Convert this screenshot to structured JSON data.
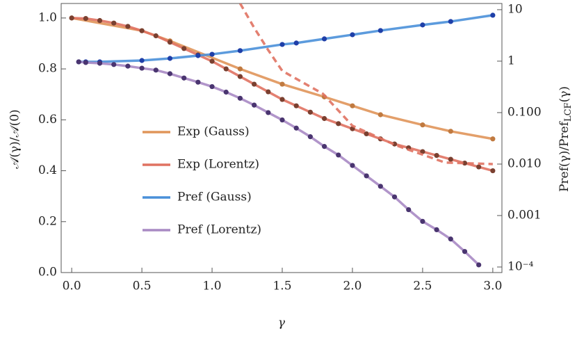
{
  "chart_data": {
    "type": "line",
    "xlabel": "γ",
    "ylabel": "𝒜(γ)/𝒜(0)",
    "y2label": [
      "Pref(γ)/Pref",
      "LCF",
      "(γ)"
    ],
    "xlim": [
      -0.075,
      3.065
    ],
    "ylim": [
      0,
      1.057
    ],
    "y2lim": [
      7.8e-05,
      13.2
    ],
    "y2log": true,
    "xticks": [
      {
        "value": 0,
        "label": "0.0"
      },
      0.5,
      {
        "value": 1,
        "label": "1.0"
      },
      1.5,
      {
        "value": 2,
        "label": "2.0"
      },
      2.5,
      {
        "value": 3,
        "label": "3.0"
      }
    ],
    "yticks": [
      {
        "value": 0,
        "label": "0.0"
      },
      0.2,
      0.4,
      0.6,
      0.8,
      {
        "value": 1,
        "label": "1.0"
      }
    ],
    "y2ticks": [
      10,
      1,
      {
        "value": 0.1,
        "label": "0.100"
      },
      {
        "value": 0.01,
        "label": "0.010"
      },
      0.001,
      {
        "value": 0.0001,
        "label": "10⁻⁴"
      }
    ],
    "legend": "left",
    "series": [
      {
        "name": "Exp (Gauss)",
        "color": "#e0955a",
        "marker_color": "#c07a40",
        "x": [
          0,
          0.5,
          0.7,
          1.2,
          1.5,
          1.8,
          2.0,
          2.2,
          2.5,
          2.7,
          3.0
        ],
        "values": [
          1.0,
          0.95,
          0.91,
          0.8,
          0.74,
          0.69,
          0.655,
          0.62,
          0.58,
          0.555,
          0.525
        ]
      },
      {
        "name": "Exp (Lorentz)",
        "color": "#e07262",
        "marker_color": "#7a4030",
        "x": [
          0,
          0.1,
          0.2,
          0.3,
          0.4,
          0.5,
          0.6,
          0.7,
          0.8,
          0.9,
          1.0,
          1.1,
          1.2,
          1.3,
          1.4,
          1.5,
          1.6,
          1.7,
          1.8,
          1.9,
          2.0,
          2.1,
          2.2,
          2.3,
          2.4,
          2.5,
          2.6,
          2.7,
          2.8,
          2.9,
          3.0
        ],
        "values": [
          1.0,
          0.998,
          0.99,
          0.98,
          0.967,
          0.95,
          0.93,
          0.905,
          0.88,
          0.855,
          0.83,
          0.8,
          0.77,
          0.74,
          0.71,
          0.68,
          0.655,
          0.63,
          0.605,
          0.585,
          0.565,
          0.545,
          0.525,
          0.505,
          0.49,
          0.475,
          0.46,
          0.445,
          0.43,
          0.415,
          0.4
        ]
      },
      {
        "name": "Pref (Gauss)",
        "color": "#4a90d9",
        "marker_color": "#1f3fa8",
        "axis": "y2",
        "x": [
          0.05,
          0.1,
          0.2,
          0.5,
          0.7,
          0.9,
          1.0,
          1.2,
          1.5,
          1.6,
          1.8,
          2.0,
          2.2,
          2.5,
          2.7,
          3.0
        ],
        "values": [
          0.97,
          0.97,
          0.97,
          1.03,
          1.13,
          1.28,
          1.36,
          1.6,
          2.11,
          2.25,
          2.71,
          3.26,
          3.93,
          5.05,
          5.89,
          7.8
        ]
      },
      {
        "name": "Pref (Lorentz)",
        "color": "#a98ac4",
        "marker_color": "#4a3570",
        "axis": "y2",
        "x": [
          0.05,
          0.1,
          0.2,
          0.3,
          0.4,
          0.5,
          0.6,
          0.7,
          0.8,
          0.9,
          1.0,
          1.1,
          1.2,
          1.3,
          1.4,
          1.5,
          1.6,
          1.7,
          1.8,
          1.9,
          2.0,
          2.1,
          2.2,
          2.3,
          2.4,
          2.5,
          2.6,
          2.7,
          2.8,
          2.9
        ],
        "values": [
          0.97,
          0.94,
          0.91,
          0.86,
          0.8,
          0.73,
          0.67,
          0.57,
          0.47,
          0.39,
          0.32,
          0.25,
          0.19,
          0.14,
          0.1,
          0.072,
          0.05,
          0.034,
          0.022,
          0.015,
          0.0094,
          0.0059,
          0.0037,
          0.0023,
          0.0013,
          0.00077,
          0.00053,
          0.00035,
          0.0002,
          0.00011
        ]
      },
      {
        "color": "#e07262",
        "dashed": true,
        "axis": "y2",
        "x": [
          1.2,
          1.3,
          1.4,
          1.5,
          1.79,
          2.0,
          2.31,
          2.66,
          3.0
        ],
        "values": [
          13.2,
          4.45,
          1.64,
          0.647,
          0.232,
          0.0555,
          0.0232,
          0.0107,
          0.01
        ]
      }
    ]
  }
}
